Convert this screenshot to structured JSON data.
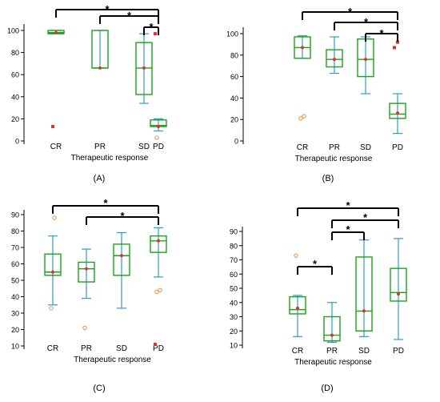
{
  "colors": {
    "box": "#1aa31a",
    "whisker": "#2a9fbf",
    "marker": "#e03030",
    "outlier": "#f08a3a",
    "bracket": "#000000"
  },
  "chart_data": [
    {
      "panel": "(A)",
      "type": "box",
      "categories": [
        "CR",
        "PR",
        "SD",
        "PD"
      ],
      "xlabel": "Therapeutic response",
      "ylim": [
        0,
        100
      ],
      "yticks": [
        0,
        20,
        40,
        60,
        80,
        100
      ],
      "boxes": [
        {
          "whisker_low": 97,
          "q1": 97,
          "median": 98,
          "q3": 100,
          "whisker_high": 100,
          "mean": 98,
          "outliers": [],
          "extremes": [
            13
          ]
        },
        {
          "whisker_low": 66,
          "q1": 66,
          "median": 66,
          "q3": 100,
          "whisker_high": 100,
          "mean": 66,
          "outliers": [],
          "extremes": []
        },
        {
          "whisker_low": 34,
          "q1": 42,
          "median": 66,
          "q3": 89,
          "whisker_high": 97,
          "mean": 66,
          "outliers": [],
          "extremes": []
        },
        {
          "whisker_low": 9,
          "q1": 13,
          "median": 14,
          "q3": 19,
          "whisker_high": 20,
          "mean": 13,
          "outliers": [
            3
          ],
          "extremes": [
            97
          ]
        }
      ],
      "brackets": [
        [
          "CR",
          "PD"
        ],
        [
          "PR",
          "PD"
        ],
        [
          "SD",
          "PD"
        ]
      ],
      "significance_label": "*"
    },
    {
      "panel": "(B)",
      "type": "box",
      "categories": [
        "CR",
        "PR",
        "SD",
        "PD"
      ],
      "xlabel": "Therapeutic response",
      "ylim": [
        0,
        100
      ],
      "yticks": [
        0,
        20,
        40,
        60,
        80,
        100
      ],
      "boxes": [
        {
          "whisker_low": 77,
          "q1": 77,
          "median": 87,
          "q3": 97,
          "whisker_high": 98,
          "mean": 87,
          "outliers": [
            21,
            23
          ],
          "extremes": []
        },
        {
          "whisker_low": 63,
          "q1": 69,
          "median": 76,
          "q3": 85,
          "whisker_high": 97,
          "mean": 76,
          "outliers": [],
          "extremes": []
        },
        {
          "whisker_low": 44,
          "q1": 60,
          "median": 76,
          "q3": 95,
          "whisker_high": 97,
          "mean": 76,
          "outliers": [],
          "extremes": []
        },
        {
          "whisker_low": 7,
          "q1": 21,
          "median": 25,
          "q3": 35,
          "whisker_high": 44,
          "mean": 26,
          "outliers": [],
          "extremes": [
            87,
            92
          ]
        }
      ],
      "brackets": [
        [
          "CR",
          "PD"
        ],
        [
          "PR",
          "PD"
        ],
        [
          "SD",
          "PD"
        ]
      ],
      "significance_label": "*"
    },
    {
      "panel": "(C)",
      "type": "box",
      "categories": [
        "CR",
        "PR",
        "SD",
        "PD"
      ],
      "xlabel": "Therapeutic response",
      "ylim": [
        10,
        90
      ],
      "yticks": [
        10,
        20,
        30,
        40,
        50,
        60,
        70,
        80,
        90
      ],
      "boxes": [
        {
          "whisker_low": 35,
          "q1": 53,
          "median": 55,
          "q3": 66,
          "whisker_high": 77,
          "mean": 55,
          "outliers": [
            33,
            88
          ],
          "extremes": []
        },
        {
          "whisker_low": 39,
          "q1": 49,
          "median": 57,
          "q3": 61,
          "whisker_high": 69,
          "mean": 57,
          "outliers": [
            21
          ],
          "extremes": []
        },
        {
          "whisker_low": 33,
          "q1": 53,
          "median": 65,
          "q3": 72,
          "whisker_high": 79,
          "mean": 65,
          "outliers": [],
          "extremes": []
        },
        {
          "whisker_low": 52,
          "q1": 67,
          "median": 74,
          "q3": 77,
          "whisker_high": 82,
          "mean": 74,
          "outliers": [
            43,
            44
          ],
          "extremes": [
            11
          ]
        }
      ],
      "brackets": [
        [
          "CR",
          "PD"
        ],
        [
          "PR",
          "PD"
        ]
      ],
      "significance_label": "*"
    },
    {
      "panel": "(D)",
      "type": "box",
      "categories": [
        "CR",
        "PR",
        "SD",
        "PD"
      ],
      "xlabel": "Therapeutic response",
      "ylim": [
        10,
        90
      ],
      "yticks": [
        10,
        20,
        30,
        40,
        50,
        60,
        70,
        80,
        90
      ],
      "boxes": [
        {
          "whisker_low": 16,
          "q1": 32,
          "median": 35,
          "q3": 44,
          "whisker_high": 45,
          "mean": 36,
          "outliers": [
            73
          ],
          "extremes": []
        },
        {
          "whisker_low": 12,
          "q1": 13,
          "median": 17,
          "q3": 30,
          "whisker_high": 40,
          "mean": 17,
          "outliers": [],
          "extremes": []
        },
        {
          "whisker_low": 16,
          "q1": 20,
          "median": 34,
          "q3": 72,
          "whisker_high": 84,
          "mean": 34,
          "outliers": [],
          "extremes": []
        },
        {
          "whisker_low": 14,
          "q1": 41,
          "median": 47,
          "q3": 64,
          "whisker_high": 85,
          "mean": 46,
          "outliers": [],
          "extremes": []
        }
      ],
      "brackets": [
        [
          "CR",
          "PD"
        ],
        [
          "PR",
          "PD"
        ],
        [
          "PR",
          "SD"
        ],
        [
          "CR",
          "PR"
        ]
      ],
      "significance_label": "*"
    }
  ]
}
